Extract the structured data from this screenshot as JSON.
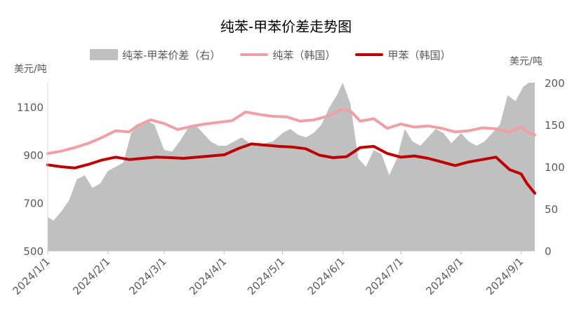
{
  "chart_data": {
    "type": "line",
    "title": "纯苯-甲苯价差走势图",
    "left_axis": {
      "unit": "美元/吨",
      "ylim": [
        500,
        1200
      ],
      "ticks": [
        500,
        700,
        900,
        1100
      ]
    },
    "right_axis": {
      "unit": "美元/吨",
      "ylim": [
        0,
        200
      ],
      "ticks": [
        0,
        50,
        100,
        150,
        200
      ]
    },
    "x_axis": {
      "xlim": [
        "2024-01-01",
        "2024-09-08"
      ],
      "ticks": [
        "2024/1/1",
        "2024/2/1",
        "2024/3/1",
        "2024/4/1",
        "2024/5/1",
        "2024/6/1",
        "2024/7/1",
        "2024/8/1",
        "2024/9/1"
      ]
    },
    "legend": {
      "placement": "top"
    },
    "series": [
      {
        "name": "纯苯-甲苯价差（右）",
        "type": "area",
        "axis": "right",
        "color": "#c0c0c0",
        "points": [
          [
            "2024-01-01",
            40
          ],
          [
            "2024-01-04",
            36
          ],
          [
            "2024-01-08",
            47
          ],
          [
            "2024-01-12",
            60
          ],
          [
            "2024-01-16",
            85
          ],
          [
            "2024-01-20",
            90
          ],
          [
            "2024-01-24",
            75
          ],
          [
            "2024-01-28",
            80
          ],
          [
            "2024-02-01",
            95
          ],
          [
            "2024-02-05",
            100
          ],
          [
            "2024-02-09",
            105
          ],
          [
            "2024-02-13",
            140
          ],
          [
            "2024-02-17",
            150
          ],
          [
            "2024-02-21",
            155
          ],
          [
            "2024-02-25",
            150
          ],
          [
            "2024-03-01",
            120
          ],
          [
            "2024-03-05",
            118
          ],
          [
            "2024-03-09",
            130
          ],
          [
            "2024-03-13",
            145
          ],
          [
            "2024-03-17",
            150
          ],
          [
            "2024-03-21",
            140
          ],
          [
            "2024-03-25",
            130
          ],
          [
            "2024-03-29",
            125
          ],
          [
            "2024-04-02",
            125
          ],
          [
            "2024-04-06",
            130
          ],
          [
            "2024-04-10",
            135
          ],
          [
            "2024-04-14",
            128
          ],
          [
            "2024-04-18",
            125
          ],
          [
            "2024-04-22",
            128
          ],
          [
            "2024-04-26",
            130
          ],
          [
            "2024-05-01",
            140
          ],
          [
            "2024-05-05",
            145
          ],
          [
            "2024-05-09",
            138
          ],
          [
            "2024-05-13",
            135
          ],
          [
            "2024-05-17",
            140
          ],
          [
            "2024-05-21",
            150
          ],
          [
            "2024-05-25",
            170
          ],
          [
            "2024-05-29",
            185
          ],
          [
            "2024-06-01",
            200
          ],
          [
            "2024-06-05",
            175
          ],
          [
            "2024-06-09",
            110
          ],
          [
            "2024-06-13",
            100
          ],
          [
            "2024-06-17",
            120
          ],
          [
            "2024-06-21",
            115
          ],
          [
            "2024-06-25",
            90
          ],
          [
            "2024-06-29",
            110
          ],
          [
            "2024-07-03",
            145
          ],
          [
            "2024-07-07",
            130
          ],
          [
            "2024-07-11",
            125
          ],
          [
            "2024-07-15",
            135
          ],
          [
            "2024-07-19",
            145
          ],
          [
            "2024-07-23",
            140
          ],
          [
            "2024-07-27",
            128
          ],
          [
            "2024-08-01",
            140
          ],
          [
            "2024-08-05",
            130
          ],
          [
            "2024-08-09",
            125
          ],
          [
            "2024-08-13",
            130
          ],
          [
            "2024-08-17",
            140
          ],
          [
            "2024-08-21",
            150
          ],
          [
            "2024-08-25",
            185
          ],
          [
            "2024-08-29",
            178
          ],
          [
            "2024-09-02",
            195
          ],
          [
            "2024-09-05",
            200
          ],
          [
            "2024-09-08",
            200
          ]
        ]
      },
      {
        "name": "纯苯（韩国）",
        "type": "line",
        "axis": "left",
        "color": "#f0a0a5",
        "points": [
          [
            "2024-01-01",
            905
          ],
          [
            "2024-01-08",
            915
          ],
          [
            "2024-01-15",
            930
          ],
          [
            "2024-01-22",
            948
          ],
          [
            "2024-01-29",
            972
          ],
          [
            "2024-02-05",
            1000
          ],
          [
            "2024-02-12",
            995
          ],
          [
            "2024-02-16",
            1020
          ],
          [
            "2024-02-23",
            1045
          ],
          [
            "2024-03-01",
            1030
          ],
          [
            "2024-03-08",
            1005
          ],
          [
            "2024-03-15",
            1018
          ],
          [
            "2024-03-22",
            1028
          ],
          [
            "2024-03-29",
            1035
          ],
          [
            "2024-04-05",
            1042
          ],
          [
            "2024-04-12",
            1078
          ],
          [
            "2024-04-19",
            1068
          ],
          [
            "2024-04-26",
            1060
          ],
          [
            "2024-05-03",
            1058
          ],
          [
            "2024-05-10",
            1040
          ],
          [
            "2024-05-17",
            1045
          ],
          [
            "2024-05-24",
            1060
          ],
          [
            "2024-05-31",
            1088
          ],
          [
            "2024-06-05",
            1082
          ],
          [
            "2024-06-10",
            1040
          ],
          [
            "2024-06-17",
            1050
          ],
          [
            "2024-06-24",
            1010
          ],
          [
            "2024-07-01",
            1028
          ],
          [
            "2024-07-08",
            1015
          ],
          [
            "2024-07-15",
            1020
          ],
          [
            "2024-07-22",
            1010
          ],
          [
            "2024-07-29",
            995
          ],
          [
            "2024-08-05",
            1000
          ],
          [
            "2024-08-12",
            1012
          ],
          [
            "2024-08-19",
            1008
          ],
          [
            "2024-08-26",
            995
          ],
          [
            "2024-09-01",
            1015
          ],
          [
            "2024-09-05",
            990
          ],
          [
            "2024-09-08",
            982
          ]
        ]
      },
      {
        "name": "甲苯（韩国）",
        "type": "line",
        "axis": "left",
        "color": "#c00000",
        "points": [
          [
            "2024-01-01",
            858
          ],
          [
            "2024-01-08",
            850
          ],
          [
            "2024-01-15",
            845
          ],
          [
            "2024-01-22",
            860
          ],
          [
            "2024-01-29",
            878
          ],
          [
            "2024-02-05",
            890
          ],
          [
            "2024-02-12",
            880
          ],
          [
            "2024-02-19",
            885
          ],
          [
            "2024-02-26",
            890
          ],
          [
            "2024-03-04",
            888
          ],
          [
            "2024-03-11",
            885
          ],
          [
            "2024-03-18",
            890
          ],
          [
            "2024-03-25",
            895
          ],
          [
            "2024-04-01",
            900
          ],
          [
            "2024-04-08",
            925
          ],
          [
            "2024-04-15",
            945
          ],
          [
            "2024-04-22",
            940
          ],
          [
            "2024-04-29",
            935
          ],
          [
            "2024-05-06",
            932
          ],
          [
            "2024-05-13",
            925
          ],
          [
            "2024-05-20",
            898
          ],
          [
            "2024-05-27",
            888
          ],
          [
            "2024-06-03",
            892
          ],
          [
            "2024-06-10",
            930
          ],
          [
            "2024-06-17",
            935
          ],
          [
            "2024-06-24",
            905
          ],
          [
            "2024-07-01",
            890
          ],
          [
            "2024-07-08",
            895
          ],
          [
            "2024-07-15",
            885
          ],
          [
            "2024-07-22",
            870
          ],
          [
            "2024-07-29",
            855
          ],
          [
            "2024-08-05",
            870
          ],
          [
            "2024-08-12",
            880
          ],
          [
            "2024-08-19",
            890
          ],
          [
            "2024-08-26",
            838
          ],
          [
            "2024-09-01",
            820
          ],
          [
            "2024-09-04",
            780
          ],
          [
            "2024-09-08",
            740
          ]
        ]
      }
    ]
  }
}
